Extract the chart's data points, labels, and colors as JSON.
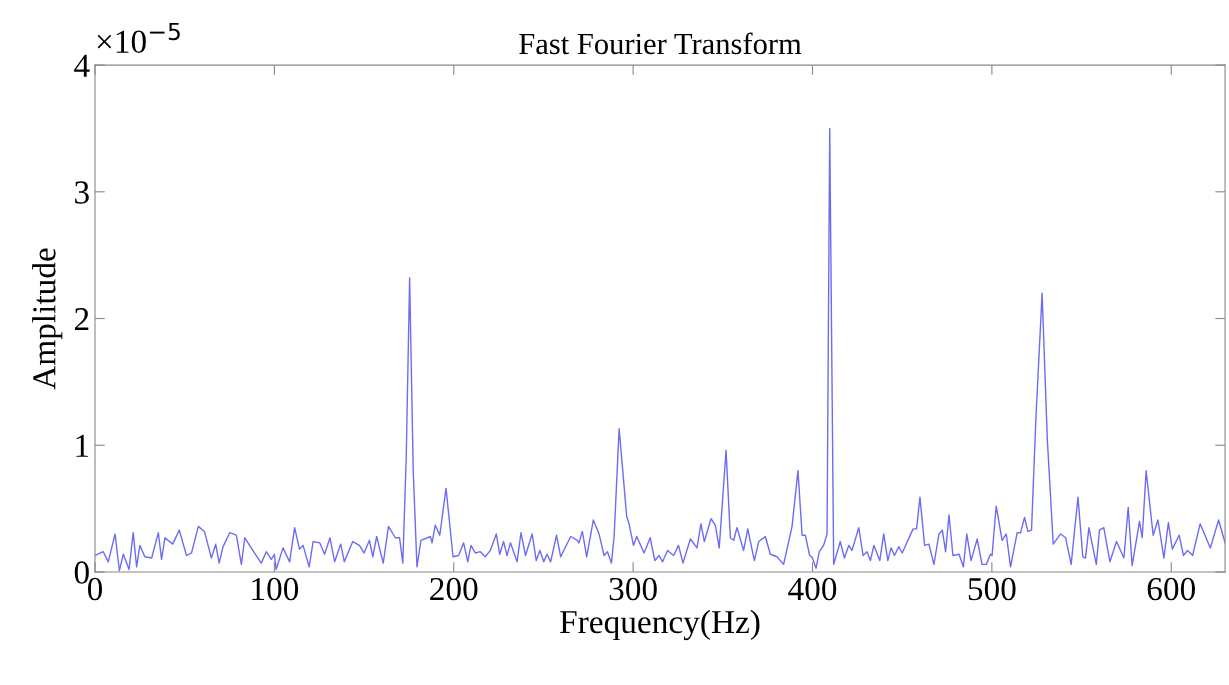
{
  "chart_data": {
    "type": "line",
    "title": "Fast Fourier Transform",
    "xlabel": "Frequency(Hz)",
    "ylabel": "Amplitude",
    "annotations": [
      "×10$^{−5}$"
    ],
    "xlim": [
      0,
      630
    ],
    "xticks": [
      0,
      100,
      200,
      300,
      400,
      500,
      600
    ],
    "ylim": [
      0,
      4
    ],
    "yticks": [
      0,
      1,
      2,
      3,
      4
    ],
    "grid": false,
    "marker": "none",
    "line_style": "solid",
    "series": [
      {
        "color": "#6b6bf5",
        "x": [
          0,
          4.6,
          7.4,
          11.2,
          13.6,
          15.8,
          19,
          21.3,
          23.2,
          25,
          27.8,
          31.6,
          35.3,
          37.1,
          39,
          43.3,
          47,
          51,
          53.8,
          57.6,
          61,
          64.9,
          67.3,
          69.2,
          71.4,
          75.1,
          78.8,
          81.6,
          83.5,
          88,
          92.7,
          95.5,
          98.3,
          100,
          101,
          104.8,
          108.5,
          111.3,
          114,
          116,
          119.4,
          121.6,
          125.3,
          128,
          131,
          133.6,
          137,
          139,
          143.7,
          147.4,
          150,
          153,
          154.9,
          157,
          160.7,
          163.6,
          167.4,
          169.8,
          171.6,
          173.5,
          175.4,
          177.4,
          179.5,
          181.7,
          187,
          187.9,
          189.7,
          192.2,
          195.7,
          199.6,
          202.7,
          205.5,
          207.8,
          209.6,
          212,
          214.8,
          217.6,
          220.4,
          223.7,
          225.6,
          227.8,
          229.7,
          231.6,
          235.3,
          237.5,
          240,
          243.7,
          246,
          248,
          250.2,
          252,
          254,
          257.3,
          259.6,
          265.2,
          268.9,
          269.8,
          271.7,
          274.1,
          277.8,
          281,
          283.8,
          285.7,
          287.9,
          289.4,
          292.2,
          296.4,
          297.7,
          300.2,
          302,
          306.1,
          309.5,
          312.1,
          314.5,
          316.4,
          319.2,
          322.6,
          325.3,
          327.8,
          331.9,
          335.6,
          337.8,
          339.7,
          343.4,
          345.8,
          348,
          351.8,
          354.2,
          356.1,
          357.9,
          361.6,
          363.9,
          367.6,
          370,
          373.7,
          376.5,
          380.2,
          383.9,
          388.6,
          391.9,
          394.2,
          396,
          398.4,
          399.7,
          402,
          403.8,
          406.2,
          408.1,
          409.6,
          411.8,
          415.5,
          417.8,
          420.2,
          422,
          425.8,
          428.2,
          430.4,
          432.3,
          434.2,
          437.5,
          439.7,
          442,
          443.8,
          445.7,
          448.1,
          450,
          456.1,
          458,
          459.9,
          462.5,
          464.9,
          467.7,
          470.5,
          472.4,
          474.2,
          476.1,
          478.3,
          481.7,
          484.1,
          486,
          488.4,
          491.8,
          494.5,
          496.9,
          499.2,
          500.1,
          502.4,
          505.7,
          508,
          510.4,
          514.1,
          516,
          518.2,
          520.1,
          522.1,
          524.5,
          528,
          530.9,
          534.2,
          538.3,
          541.1,
          544.2,
          548,
          550.7,
          552.2,
          554.1,
          558.2,
          560,
          562.4,
          565.8,
          569.5,
          573.6,
          576,
          578.2,
          582.3,
          583.8,
          586,
          589.9,
          592.6,
          595.9,
          598.4,
          600.6,
          604.4,
          606.8,
          609.1,
          611.9,
          616.1,
          621.8,
          626.4,
          630
        ],
        "values": [
          0.13,
          0.16,
          0.08,
          0.3,
          0.01,
          0.14,
          0.02,
          0.31,
          0.04,
          0.21,
          0.12,
          0.11,
          0.31,
          0.1,
          0.27,
          0.22,
          0.33,
          0.13,
          0.15,
          0.36,
          0.32,
          0.11,
          0.22,
          0.07,
          0.2,
          0.31,
          0.29,
          0.06,
          0.27,
          0.17,
          0.07,
          0.16,
          0.1,
          0.14,
          0.02,
          0.19,
          0.08,
          0.35,
          0.18,
          0.21,
          0.04,
          0.24,
          0.23,
          0.14,
          0.27,
          0.08,
          0.22,
          0.08,
          0.24,
          0.21,
          0.15,
          0.25,
          0.12,
          0.28,
          0.07,
          0.36,
          0.27,
          0.27,
          0.07,
          0.9,
          2.32,
          0.8,
          0.04,
          0.25,
          0.28,
          0.23,
          0.37,
          0.29,
          0.66,
          0.12,
          0.13,
          0.23,
          0.08,
          0.21,
          0.15,
          0.16,
          0.12,
          0.17,
          0.3,
          0.14,
          0.24,
          0.13,
          0.23,
          0.08,
          0.31,
          0.13,
          0.3,
          0.09,
          0.17,
          0.08,
          0.14,
          0.08,
          0.29,
          0.12,
          0.28,
          0.25,
          0.23,
          0.32,
          0.12,
          0.41,
          0.3,
          0.13,
          0.16,
          0.07,
          0.28,
          1.13,
          0.44,
          0.38,
          0.21,
          0.28,
          0.15,
          0.27,
          0.09,
          0.13,
          0.08,
          0.17,
          0.13,
          0.21,
          0.07,
          0.26,
          0.19,
          0.38,
          0.24,
          0.42,
          0.37,
          0.19,
          0.96,
          0.27,
          0.25,
          0.35,
          0.17,
          0.34,
          0.09,
          0.24,
          0.28,
          0.14,
          0.12,
          0.06,
          0.36,
          0.8,
          0.29,
          0.29,
          0.13,
          0.12,
          0.03,
          0.16,
          0.21,
          0.3,
          3.5,
          0.06,
          0.24,
          0.11,
          0.21,
          0.17,
          0.35,
          0.13,
          0.16,
          0.09,
          0.21,
          0.09,
          0.3,
          0.09,
          0.19,
          0.13,
          0.2,
          0.15,
          0.34,
          0.34,
          0.59,
          0.21,
          0.22,
          0.06,
          0.3,
          0.33,
          0.16,
          0.45,
          0.13,
          0.14,
          0.04,
          0.3,
          0.09,
          0.26,
          0.06,
          0.06,
          0.14,
          0.13,
          0.52,
          0.25,
          0.3,
          0.04,
          0.31,
          0.31,
          0.43,
          0.32,
          0.33,
          1.2,
          2.2,
          1.05,
          0.22,
          0.3,
          0.27,
          0.06,
          0.59,
          0.12,
          0.11,
          0.35,
          0.06,
          0.33,
          0.35,
          0.08,
          0.24,
          0.11,
          0.51,
          0.05,
          0.4,
          0.27,
          0.8,
          0.29,
          0.41,
          0.11,
          0.39,
          0.18,
          0.29,
          0.13,
          0.17,
          0.13,
          0.38,
          0.19,
          0.41,
          0.23
        ]
      }
    ]
  }
}
